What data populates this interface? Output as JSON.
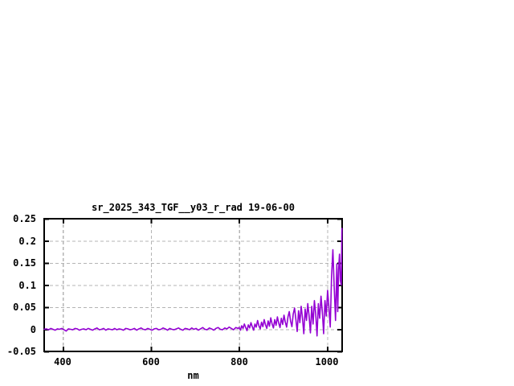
{
  "chart_data": {
    "type": "line",
    "title": "sr_2025_343_TGF__y03_r_rad 19-06-00",
    "xlabel": "nm",
    "ylabel": "",
    "xlim": [
      357.5,
      1034
    ],
    "ylim": [
      -0.05,
      0.25
    ],
    "xticks": [
      400,
      600,
      800,
      1000
    ],
    "xtick_labels": [
      "400",
      "600",
      "800",
      "1000"
    ],
    "yticks": [
      -0.05,
      0,
      0.05,
      0.1,
      0.15,
      0.2,
      0.25
    ],
    "ytick_labels": [
      "-0.05",
      "0",
      "0.05",
      "0.1",
      "0.15",
      "0.2",
      "0.25"
    ],
    "grid": true,
    "legend_position": "none",
    "colors": {
      "line": "#9400d3",
      "frame": "#000000",
      "grid": "#b4b4b4",
      "text": "#000000",
      "background": "#ffffff"
    },
    "series": [
      {
        "name": "sr_2025_343_TGF__y03_r_rad",
        "points": [
          [
            357.5,
            0.0
          ],
          [
            362.5,
            0.001
          ],
          [
            367.5,
            -0.001
          ],
          [
            372.5,
            0.002
          ],
          [
            377.5,
            0.0
          ],
          [
            382.5,
            -0.002
          ],
          [
            387.5,
            0.001
          ],
          [
            392.5,
            0.0
          ],
          [
            397.5,
            0.002
          ],
          [
            402.5,
            -0.001
          ],
          [
            407.5,
            -0.004
          ],
          [
            412.5,
            0.001
          ],
          [
            417.5,
            0.0
          ],
          [
            422.5,
            -0.001
          ],
          [
            427.5,
            0.002
          ],
          [
            432.5,
            0.001
          ],
          [
            437.5,
            -0.002
          ],
          [
            442.5,
            0.0
          ],
          [
            447.5,
            0.001
          ],
          [
            452.5,
            -0.001
          ],
          [
            457.5,
            0.002
          ],
          [
            462.5,
            0.0
          ],
          [
            467.5,
            -0.002
          ],
          [
            472.5,
            0.001
          ],
          [
            477.5,
            0.003
          ],
          [
            482.5,
            -0.001
          ],
          [
            487.5,
            0.0
          ],
          [
            492.5,
            0.002
          ],
          [
            497.5,
            -0.002
          ],
          [
            502.5,
            0.001
          ],
          [
            507.5,
            0.0
          ],
          [
            512.5,
            -0.001
          ],
          [
            517.5,
            0.002
          ],
          [
            522.5,
            -0.001
          ],
          [
            527.5,
            0.001
          ],
          [
            532.5,
            0.0
          ],
          [
            537.5,
            -0.002
          ],
          [
            542.5,
            0.002
          ],
          [
            547.5,
            0.001
          ],
          [
            552.5,
            -0.001
          ],
          [
            557.5,
            0.0
          ],
          [
            562.5,
            0.002
          ],
          [
            567.5,
            -0.002
          ],
          [
            572.5,
            0.001
          ],
          [
            577.5,
            0.003
          ],
          [
            582.5,
            0.0
          ],
          [
            587.5,
            -0.001
          ],
          [
            592.5,
            0.002
          ],
          [
            597.5,
            0.0
          ],
          [
            602.5,
            -0.002
          ],
          [
            607.5,
            0.001
          ],
          [
            612.5,
            0.002
          ],
          [
            617.5,
            -0.001
          ],
          [
            622.5,
            0.0
          ],
          [
            627.5,
            0.003
          ],
          [
            632.5,
            0.001
          ],
          [
            637.5,
            -0.002
          ],
          [
            642.5,
            0.002
          ],
          [
            647.5,
            0.0
          ],
          [
            652.5,
            -0.001
          ],
          [
            657.5,
            0.001
          ],
          [
            662.5,
            0.003
          ],
          [
            667.5,
            0.0
          ],
          [
            672.5,
            -0.002
          ],
          [
            677.5,
            0.002
          ],
          [
            682.5,
            0.001
          ],
          [
            687.5,
            -0.001
          ],
          [
            692.5,
            0.003
          ],
          [
            697.5,
            0.0
          ],
          [
            702.5,
            0.002
          ],
          [
            707.5,
            -0.002
          ],
          [
            712.5,
            0.001
          ],
          [
            717.5,
            0.004
          ],
          [
            722.5,
            0.0
          ],
          [
            727.5,
            -0.001
          ],
          [
            732.5,
            0.003
          ],
          [
            737.5,
            0.001
          ],
          [
            742.5,
            -0.002
          ],
          [
            747.5,
            0.002
          ],
          [
            752.5,
            0.004
          ],
          [
            757.5,
            0.0
          ],
          [
            762.5,
            -0.001
          ],
          [
            767.5,
            0.003
          ],
          [
            772.5,
            0.001
          ],
          [
            777.5,
            0.005
          ],
          [
            782.5,
            0.002
          ],
          [
            787.5,
            -0.001
          ],
          [
            792.5,
            0.004
          ],
          [
            797.5,
            0.002
          ],
          [
            800,
            0.004
          ],
          [
            803,
            -0.002
          ],
          [
            806,
            0.008
          ],
          [
            809,
            0.002
          ],
          [
            812,
            0.012
          ],
          [
            815,
            0.004
          ],
          [
            818,
            -0.003
          ],
          [
            821,
            0.01
          ],
          [
            824,
            0.003
          ],
          [
            827,
            0.015
          ],
          [
            830,
            0.006
          ],
          [
            833,
            -0.002
          ],
          [
            836,
            0.012
          ],
          [
            839,
            0.005
          ],
          [
            842,
            0.02
          ],
          [
            845,
            0.008
          ],
          [
            848,
            0.001
          ],
          [
            851,
            0.016
          ],
          [
            854,
            0.006
          ],
          [
            857,
            0.022
          ],
          [
            860,
            0.01
          ],
          [
            863,
            0.002
          ],
          [
            866,
            0.019
          ],
          [
            869,
            0.007
          ],
          [
            872,
            0.026
          ],
          [
            875,
            0.012
          ],
          [
            878,
            0.003
          ],
          [
            881,
            0.022
          ],
          [
            884,
            0.009
          ],
          [
            887,
            0.028
          ],
          [
            890,
            0.014
          ],
          [
            893,
            0.004
          ],
          [
            896,
            0.025
          ],
          [
            899,
            0.011
          ],
          [
            902,
            0.032
          ],
          [
            905,
            0.016
          ],
          [
            908,
            0.005
          ],
          [
            911,
            0.028
          ],
          [
            914,
            0.04
          ],
          [
            917,
            0.018
          ],
          [
            920,
            0.006
          ],
          [
            923,
            0.035
          ],
          [
            926,
            0.048
          ],
          [
            929,
            0.022
          ],
          [
            932,
            -0.005
          ],
          [
            935,
            0.042
          ],
          [
            938,
            0.015
          ],
          [
            941,
            0.052
          ],
          [
            944,
            0.025
          ],
          [
            947,
            -0.01
          ],
          [
            950,
            0.046
          ],
          [
            953,
            0.02
          ],
          [
            956,
            0.058
          ],
          [
            959,
            0.03
          ],
          [
            962,
            -0.008
          ],
          [
            965,
            0.052
          ],
          [
            968,
            0.012
          ],
          [
            971,
            0.065
          ],
          [
            974,
            0.035
          ],
          [
            977,
            -0.015
          ],
          [
            980,
            0.058
          ],
          [
            983,
            0.025
          ],
          [
            986,
            0.075
          ],
          [
            989,
            0.04
          ],
          [
            992,
            -0.01
          ],
          [
            995,
            0.065
          ],
          [
            998,
            0.03
          ],
          [
            1001,
            0.088
          ],
          [
            1004,
            0.05
          ],
          [
            1007,
            0.005
          ],
          [
            1010,
            0.12
          ],
          [
            1013,
            0.18
          ],
          [
            1016,
            0.095
          ],
          [
            1019,
            0.02
          ],
          [
            1022,
            0.148
          ],
          [
            1024,
            0.04
          ],
          [
            1026,
            0.135
          ],
          [
            1028,
            0.17
          ],
          [
            1030,
            0.11
          ],
          [
            1032,
            0.1
          ],
          [
            1033.5,
            0.228
          ]
        ]
      }
    ]
  }
}
